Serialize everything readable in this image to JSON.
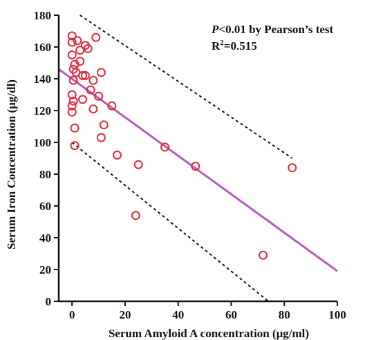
{
  "chart_data": {
    "type": "scatter",
    "xlabel": "Serum Amyloid A concentration (μg/ml)",
    "ylabel": "Serum Iron Concentration (μg/dl)",
    "xlim": [
      -5,
      100
    ],
    "ylim": [
      0,
      180
    ],
    "x_ticks": [
      "0",
      "20",
      "40",
      "60",
      "80",
      "100"
    ],
    "y_ticks": [
      "0",
      "20",
      "40",
      "60",
      "80",
      "100",
      "120",
      "140",
      "160",
      "180"
    ],
    "annotation_line1": "P<0.01 by Pearson’s test",
    "annotation_line1_italic": "P",
    "annotation_line1_rest": "<0.01 by Pearson’s test",
    "annotation_line2": "R2=0.515",
    "annotation_line2_base": "R",
    "annotation_line2_sup": "2",
    "annotation_line2_rest": "=0.515",
    "grid": false,
    "points": [
      {
        "x": 0.0,
        "y": 167
      },
      {
        "x": 2.0,
        "y": 164
      },
      {
        "x": 0.0,
        "y": 163
      },
      {
        "x": 5.0,
        "y": 161
      },
      {
        "x": 6.0,
        "y": 159
      },
      {
        "x": 3.0,
        "y": 158
      },
      {
        "x": 9.0,
        "y": 166
      },
      {
        "x": 0.0,
        "y": 155
      },
      {
        "x": 3.0,
        "y": 151
      },
      {
        "x": 1.0,
        "y": 149
      },
      {
        "x": 0.5,
        "y": 146
      },
      {
        "x": 1.5,
        "y": 144
      },
      {
        "x": 4.0,
        "y": 142
      },
      {
        "x": 5.0,
        "y": 142
      },
      {
        "x": 11.0,
        "y": 144
      },
      {
        "x": 0.5,
        "y": 139
      },
      {
        "x": 8.0,
        "y": 139
      },
      {
        "x": 7.0,
        "y": 133
      },
      {
        "x": 0.0,
        "y": 130
      },
      {
        "x": 10.0,
        "y": 129
      },
      {
        "x": 4.0,
        "y": 127
      },
      {
        "x": 0.5,
        "y": 126
      },
      {
        "x": 0.0,
        "y": 123
      },
      {
        "x": 15.0,
        "y": 123
      },
      {
        "x": 8.0,
        "y": 121
      },
      {
        "x": 0.0,
        "y": 119
      },
      {
        "x": 12.0,
        "y": 111
      },
      {
        "x": 1.0,
        "y": 109
      },
      {
        "x": 11.0,
        "y": 103
      },
      {
        "x": 1.0,
        "y": 98
      },
      {
        "x": 35.0,
        "y": 97
      },
      {
        "x": 17.0,
        "y": 92
      },
      {
        "x": 25.0,
        "y": 86
      },
      {
        "x": 46.5,
        "y": 85
      },
      {
        "x": 83.0,
        "y": 84
      },
      {
        "x": 24.0,
        "y": 54
      },
      {
        "x": 72.0,
        "y": 29
      }
    ],
    "regression_line": {
      "x": [
        -5,
        100
      ],
      "y": [
        146,
        19
      ],
      "color": "#b55ab8"
    },
    "upper_band": {
      "x": [
        3,
        83
      ],
      "y": [
        180,
        90
      ]
    },
    "lower_band": {
      "x": [
        0,
        74
      ],
      "y": [
        100,
        0
      ]
    },
    "marker_color": "#e0283c"
  }
}
